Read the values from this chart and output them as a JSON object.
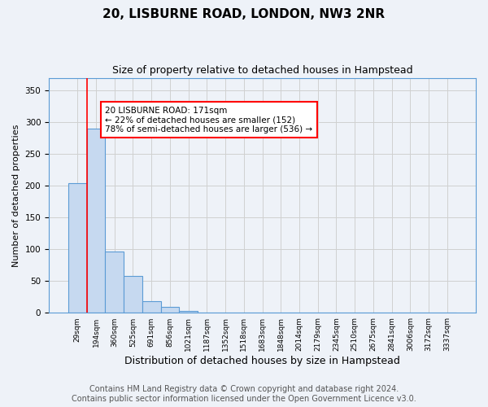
{
  "title": "20, LISBURNE ROAD, LONDON, NW3 2NR",
  "subtitle": "Size of property relative to detached houses in Hampstead",
  "xlabel": "Distribution of detached houses by size in Hampstead",
  "ylabel": "Number of detached properties",
  "categories": [
    "29sqm",
    "194sqm",
    "360sqm",
    "525sqm",
    "691sqm",
    "856sqm",
    "1021sqm",
    "1187sqm",
    "1352sqm",
    "1518sqm",
    "1683sqm",
    "1848sqm",
    "2014sqm",
    "2179sqm",
    "2345sqm",
    "2510sqm",
    "2675sqm",
    "2841sqm",
    "3006sqm",
    "3172sqm",
    "3337sqm"
  ],
  "values": [
    204,
    290,
    97,
    58,
    19,
    10,
    3,
    1,
    0,
    0,
    0,
    0,
    0,
    0,
    0,
    0,
    0,
    0,
    0,
    0,
    0
  ],
  "bar_color": "#c6d9f0",
  "bar_edge_color": "#5b9bd5",
  "bar_linewidth": 0.8,
  "grid_color": "#d0d0d0",
  "annotation_text": "20 LISBURNE ROAD: 171sqm\n← 22% of detached houses are smaller (152)\n78% of semi-detached houses are larger (536) →",
  "annotation_box_color": "white",
  "annotation_box_edge_color": "red",
  "vline_x": 1,
  "vline_color": "red",
  "vline_linewidth": 1.2,
  "ylim": [
    0,
    370
  ],
  "yticks": [
    0,
    50,
    100,
    150,
    200,
    250,
    300,
    350
  ],
  "footer_line1": "Contains HM Land Registry data © Crown copyright and database right 2024.",
  "footer_line2": "Contains public sector information licensed under the Open Government Licence v3.0.",
  "background_color": "#eef2f8",
  "title_fontsize": 11,
  "subtitle_fontsize": 9,
  "ylabel_fontsize": 8,
  "xlabel_fontsize": 9,
  "tick_fontsize": 6.5,
  "footer_fontsize": 7,
  "annot_fontsize": 7.5
}
